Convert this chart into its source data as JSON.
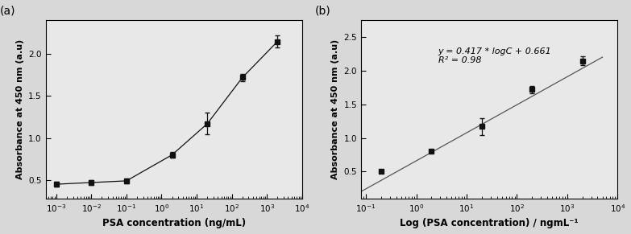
{
  "panel_a": {
    "x": [
      0.001,
      0.01,
      0.1,
      2,
      20,
      200,
      2000
    ],
    "y": [
      0.45,
      0.47,
      0.49,
      0.8,
      1.17,
      1.72,
      2.15
    ],
    "yerr": [
      0.025,
      0.025,
      0.025,
      0.03,
      0.13,
      0.04,
      0.07
    ],
    "xlabel": "PSA concentration (ng/mL)",
    "ylabel": "Absorbance at 450 nm (a.u)",
    "xlim": [
      0.0005,
      10000.0
    ],
    "ylim": [
      0.28,
      2.4
    ],
    "yticks": [
      0.5,
      1.0,
      1.5,
      2.0
    ],
    "label": "(a)"
  },
  "panel_b": {
    "x": [
      0.2,
      2,
      20,
      200,
      2000
    ],
    "y": [
      0.5,
      0.8,
      1.17,
      1.72,
      2.15
    ],
    "yerr": [
      0.02,
      0.02,
      0.13,
      0.05,
      0.07
    ],
    "xlabel": "Log (PSA concentration) / ngmL⁻¹",
    "ylabel": "Absorbance at 450 nm (a.u)",
    "xlim": [
      0.08,
      10000.0
    ],
    "ylim": [
      0.1,
      2.75
    ],
    "yticks": [
      0.5,
      1.0,
      1.5,
      2.0,
      2.5
    ],
    "fit_slope": 0.417,
    "fit_intercept": 0.661,
    "fit_xrange": [
      0.06,
      5000
    ],
    "fit_equation": "y = 0.417 * logC + 0.661",
    "fit_r2": "R² = 0.98",
    "label": "(b)"
  },
  "marker": "s",
  "markersize": 4,
  "linecolor": "#555555",
  "markercolor": "#111111",
  "linewidth": 0.9,
  "capsize": 2.5,
  "elinewidth": 0.9,
  "bg_color": "#e8e8e8",
  "fig_bg_color": "#d8d8d8"
}
